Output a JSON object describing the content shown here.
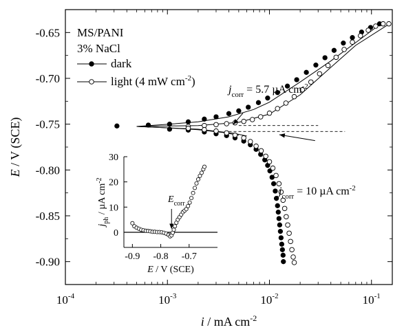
{
  "chart_data": [
    {
      "type": "scatter",
      "xscale": "log",
      "xlim": [
        0.0001,
        0.16
      ],
      "ylim": [
        -0.925,
        -0.625
      ],
      "xlabel": {
        "main": "i",
        "rest": " / mA cm",
        "sup": "-2"
      },
      "ylabel": {
        "main": "E",
        "rest": " / V (SCE)"
      },
      "x_ticks": [
        {
          "value": 0.0001,
          "base": "10",
          "exp": "-4"
        },
        {
          "value": 0.001,
          "base": "10",
          "exp": "-3"
        },
        {
          "value": 0.01,
          "base": "10",
          "exp": "-2"
        },
        {
          "value": 0.1,
          "base": "10",
          "exp": "-1"
        }
      ],
      "y_ticks": [
        {
          "value": -0.65,
          "label": "-0.65"
        },
        {
          "value": -0.7,
          "label": "-0.70"
        },
        {
          "value": -0.75,
          "label": "-0.75"
        },
        {
          "value": -0.8,
          "label": "-0.80"
        },
        {
          "value": -0.85,
          "label": "-0.85"
        },
        {
          "value": -0.9,
          "label": "-0.90"
        }
      ],
      "text_lines": [
        {
          "text": "MS/PANI"
        },
        {
          "text": "3% NaCl"
        }
      ],
      "legend": {
        "placement": "top-left",
        "entries": [
          {
            "label": "dark",
            "marker": "filled"
          },
          {
            "label": "light (4 mW cm",
            "sup": "-2",
            "tail": ")",
            "marker": "open"
          }
        ]
      },
      "series": [
        {
          "name": "dark",
          "marker": "filled",
          "points": [
            [
              0.00032,
              -0.752
            ],
            [
              0.00065,
              -0.751
            ],
            [
              0.00105,
              -0.75
            ],
            [
              0.0016,
              -0.7475
            ],
            [
              0.0023,
              -0.7445
            ],
            [
              0.003,
              -0.742
            ],
            [
              0.004,
              -0.7385
            ],
            [
              0.005,
              -0.7355
            ],
            [
              0.0062,
              -0.7315
            ],
            [
              0.0078,
              -0.7265
            ],
            [
              0.0096,
              -0.7215
            ],
            [
              0.012,
              -0.7155
            ],
            [
              0.015,
              -0.7085
            ],
            [
              0.0185,
              -0.7015
            ],
            [
              0.023,
              -0.6935
            ],
            [
              0.0285,
              -0.6855
            ],
            [
              0.035,
              -0.6775
            ],
            [
              0.043,
              -0.6695
            ],
            [
              0.053,
              -0.6615
            ],
            [
              0.065,
              -0.6555
            ],
            [
              0.08,
              -0.6495
            ],
            [
              0.098,
              -0.6445
            ],
            [
              0.12,
              -0.6405
            ],
            [
              0.00105,
              -0.7555
            ],
            [
              0.0016,
              -0.7565
            ],
            [
              0.0023,
              -0.7585
            ],
            [
              0.003,
              -0.7605
            ],
            [
              0.0038,
              -0.7625
            ],
            [
              0.0046,
              -0.765
            ],
            [
              0.0056,
              -0.7685
            ],
            [
              0.0065,
              -0.7725
            ],
            [
              0.0074,
              -0.7775
            ],
            [
              0.0082,
              -0.783
            ],
            [
              0.009,
              -0.789
            ],
            [
              0.0096,
              -0.795
            ],
            [
              0.0101,
              -0.801
            ],
            [
              0.0106,
              -0.808
            ],
            [
              0.011,
              -0.815
            ],
            [
              0.0114,
              -0.823
            ],
            [
              0.0117,
              -0.831
            ],
            [
              0.012,
              -0.839
            ],
            [
              0.0122,
              -0.846
            ],
            [
              0.0124,
              -0.853
            ],
            [
              0.0126,
              -0.86
            ],
            [
              0.0128,
              -0.867
            ],
            [
              0.013,
              -0.874
            ],
            [
              0.0132,
              -0.881
            ],
            [
              0.0134,
              -0.887
            ],
            [
              0.0136,
              -0.893
            ],
            [
              0.0137,
              -0.9
            ]
          ]
        },
        {
          "name": "light (4 mW cm-2)",
          "marker": "open",
          "points": [
            [
              0.0016,
              -0.7525
            ],
            [
              0.0023,
              -0.7515
            ],
            [
              0.003,
              -0.7505
            ],
            [
              0.0038,
              -0.7495
            ],
            [
              0.0046,
              -0.7485
            ],
            [
              0.0056,
              -0.747
            ],
            [
              0.0068,
              -0.745
            ],
            [
              0.0082,
              -0.742
            ],
            [
              0.01,
              -0.738
            ],
            [
              0.012,
              -0.733
            ],
            [
              0.0145,
              -0.727
            ],
            [
              0.0175,
              -0.72
            ],
            [
              0.021,
              -0.7125
            ],
            [
              0.0255,
              -0.704
            ],
            [
              0.031,
              -0.695
            ],
            [
              0.0375,
              -0.686
            ],
            [
              0.045,
              -0.677
            ],
            [
              0.054,
              -0.6685
            ],
            [
              0.065,
              -0.6605
            ],
            [
              0.078,
              -0.6535
            ],
            [
              0.093,
              -0.6475
            ],
            [
              0.11,
              -0.643
            ],
            [
              0.13,
              -0.6405
            ],
            [
              0.148,
              -0.6405
            ],
            [
              0.0016,
              -0.7545
            ],
            [
              0.0023,
              -0.756
            ],
            [
              0.003,
              -0.7575
            ],
            [
              0.0038,
              -0.7595
            ],
            [
              0.0046,
              -0.762
            ],
            [
              0.0056,
              -0.765
            ],
            [
              0.0065,
              -0.769
            ],
            [
              0.0074,
              -0.774
            ],
            [
              0.0083,
              -0.779
            ],
            [
              0.0092,
              -0.785
            ],
            [
              0.01,
              -0.791
            ],
            [
              0.0108,
              -0.798
            ],
            [
              0.0116,
              -0.806
            ],
            [
              0.0124,
              -0.815
            ],
            [
              0.013,
              -0.824
            ],
            [
              0.0136,
              -0.833
            ],
            [
              0.0141,
              -0.842
            ],
            [
              0.0146,
              -0.851
            ],
            [
              0.0151,
              -0.86
            ],
            [
              0.0156,
              -0.869
            ],
            [
              0.0161,
              -0.878
            ],
            [
              0.0166,
              -0.887
            ],
            [
              0.0171,
              -0.895
            ],
            [
              0.0175,
              -0.901
            ]
          ]
        }
      ],
      "fit_lines": [
        {
          "points": [
            [
              0.0005,
              -0.7525
            ],
            [
              0.001,
              -0.7502
            ],
            [
              0.002,
              -0.7475
            ],
            [
              0.004,
              -0.742
            ],
            [
              0.007,
              -0.734
            ],
            [
              0.01,
              -0.726
            ],
            [
              0.02,
              -0.704
            ],
            [
              0.04,
              -0.681
            ],
            [
              0.07,
              -0.661
            ],
            [
              0.12,
              -0.6415
            ]
          ]
        },
        {
          "points": [
            [
              0.0005,
              -0.7525
            ],
            [
              0.001,
              -0.754
            ],
            [
              0.002,
              -0.756
            ],
            [
              0.0035,
              -0.759
            ],
            [
              0.005,
              -0.762
            ]
          ]
        },
        {
          "points": [
            [
              0.0005,
              -0.7525
            ],
            [
              0.002,
              -0.7515
            ],
            [
              0.005,
              -0.748
            ],
            [
              0.01,
              -0.739
            ],
            [
              0.02,
              -0.718
            ],
            [
              0.04,
              -0.688
            ],
            [
              0.07,
              -0.664
            ],
            [
              0.15,
              -0.6405
            ]
          ]
        },
        {
          "points": [
            [
              0.0005,
              -0.7525
            ],
            [
              0.002,
              -0.7555
            ],
            [
              0.0045,
              -0.76
            ],
            [
              0.006,
              -0.763
            ]
          ]
        }
      ],
      "dashed_lines": [
        {
          "x": [
            0.005,
            0.03
          ],
          "y": -0.7515
        },
        {
          "x": [
            0.004,
            0.055
          ],
          "y": -0.758
        }
      ],
      "annotations": [
        {
          "main": "j",
          "sub": "corr",
          "rest": " = 5.7 µA cm",
          "sup": "-2",
          "anchor": [
            0.00505,
            -0.74
          ],
          "arrow_from": [
            0.0055,
            -0.738
          ],
          "arrow_to": [
            0.0044,
            -0.7505
          ]
        },
        {
          "main": "j",
          "sub": "corr",
          "rest": " = 10 µA cm",
          "sup": "-2",
          "anchor": [
            0.035,
            -0.779
          ],
          "arrow_from": [
            0.028,
            -0.768
          ],
          "arrow_to": [
            0.0125,
            -0.7615
          ]
        }
      ],
      "inset": {
        "type": "scatter",
        "xlim": [
          -0.93,
          -0.6
        ],
        "ylim": [
          -6,
          30
        ],
        "xlabel": {
          "main": "E",
          "rest": " / V (SCE)"
        },
        "ylabel": {
          "main": "j",
          "sub": "ph",
          "rest": " / µA cm",
          "sup": "-2"
        },
        "x_ticks": [
          {
            "value": -0.9,
            "label": "-0.9"
          },
          {
            "value": -0.8,
            "label": "-0.8"
          },
          {
            "value": -0.7,
            "label": "-0.7"
          }
        ],
        "y_ticks": [
          {
            "value": 0,
            "label": "0"
          },
          {
            "value": 10,
            "label": "10"
          },
          {
            "value": 20,
            "label": "20"
          },
          {
            "value": 30,
            "label": "30"
          }
        ],
        "zero_line": 0,
        "annotation": {
          "main": "E",
          "sub": "corr",
          "x": -0.762,
          "y": 1.5
        },
        "series": [
          {
            "marker": "open",
            "points": [
              [
                -0.9,
                3.6
              ],
              [
                -0.893,
                2.4
              ],
              [
                -0.885,
                1.8
              ],
              [
                -0.877,
                1.4
              ],
              [
                -0.869,
                1.0
              ],
              [
                -0.861,
                0.8
              ],
              [
                -0.853,
                0.6
              ],
              [
                -0.845,
                0.5
              ],
              [
                -0.837,
                0.4
              ],
              [
                -0.829,
                0.2
              ],
              [
                -0.821,
                0.2
              ],
              [
                -0.813,
                0.1
              ],
              [
                -0.805,
                0.1
              ],
              [
                -0.797,
                0.0
              ],
              [
                -0.789,
                -0.2
              ],
              [
                -0.781,
                -0.5
              ],
              [
                -0.773,
                -1.0
              ],
              [
                -0.767,
                -1.6
              ],
              [
                -0.762,
                -1.2
              ],
              [
                -0.758,
                -0.2
              ],
              [
                -0.754,
                1.0
              ],
              [
                -0.75,
                2.4
              ],
              [
                -0.745,
                3.8
              ],
              [
                -0.74,
                5.0
              ],
              [
                -0.734,
                6.0
              ],
              [
                -0.728,
                7.0
              ],
              [
                -0.722,
                8.0
              ],
              [
                -0.716,
                8.6
              ],
              [
                -0.71,
                9.2
              ],
              [
                -0.704,
                10.4
              ],
              [
                -0.698,
                11.8
              ],
              [
                -0.692,
                13.6
              ],
              [
                -0.686,
                15.6
              ],
              [
                -0.68,
                17.6
              ],
              [
                -0.674,
                19.4
              ],
              [
                -0.668,
                21.0
              ],
              [
                -0.662,
                22.4
              ],
              [
                -0.656,
                23.6
              ],
              [
                -0.65,
                25.0
              ],
              [
                -0.646,
                26.0
              ]
            ]
          }
        ]
      }
    }
  ]
}
